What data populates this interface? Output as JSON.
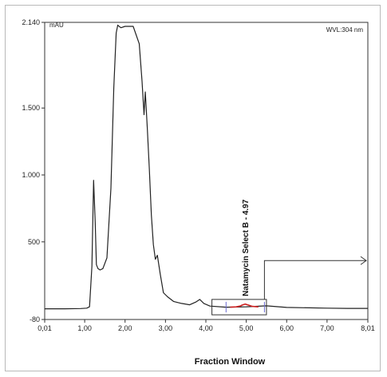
{
  "chart_data": {
    "type": "line",
    "title": "",
    "xlabel": "Fraction Window",
    "ylabel_unit": "mAU",
    "wavelength_label": "WVL:304 nm",
    "xlim": [
      0.01,
      8.01
    ],
    "ylim": [
      -80,
      2140
    ],
    "x_ticks": [
      0.01,
      1.0,
      2.0,
      3.0,
      4.0,
      5.0,
      6.0,
      7.0,
      8.01
    ],
    "x_tick_labels": [
      "0,01",
      "1,00",
      "2,00",
      "3,00",
      "4,00",
      "5,00",
      "6,00",
      "7,00",
      "8,01"
    ],
    "y_ticks": [
      2140,
      1500,
      1000,
      500,
      -80
    ],
    "y_tick_labels": [
      "2.140",
      "1.500",
      "1.000",
      "500",
      "-80"
    ],
    "annotation": "Natamycin Select B - 4.97",
    "fraction_window": [
      4.15,
      5.5
    ],
    "series": [
      {
        "color": "#222222",
        "x": [
          0.01,
          0.5,
          0.9,
          1.05,
          1.12,
          1.18,
          1.22,
          1.26,
          1.29,
          1.33,
          1.38,
          1.45,
          1.55,
          1.65,
          1.72,
          1.78,
          1.82,
          1.85,
          1.9,
          2.0,
          2.2,
          2.35,
          2.42,
          2.47,
          2.5,
          2.55,
          2.6,
          2.65,
          2.7,
          2.75,
          2.8,
          2.87,
          2.95,
          3.05,
          3.2,
          3.4,
          3.6,
          3.75,
          3.85,
          3.95,
          4.1,
          4.5,
          5.0,
          5.5,
          6.0,
          7.0,
          7.5,
          8.01
        ],
        "y": [
          0,
          0,
          2,
          5,
          15,
          320,
          960,
          650,
          330,
          300,
          290,
          300,
          380,
          900,
          1650,
          2060,
          2120,
          2110,
          2100,
          2110,
          2110,
          1980,
          1700,
          1450,
          1620,
          1350,
          1050,
          700,
          480,
          370,
          400,
          260,
          120,
          90,
          55,
          40,
          30,
          50,
          70,
          40,
          20,
          12,
          15,
          22,
          10,
          5,
          3,
          3
        ]
      },
      {
        "color": "#cc2020",
        "x": [
          4.6,
          4.75,
          4.85,
          4.9,
          4.97,
          5.05,
          5.15,
          5.3
        ],
        "y": [
          12,
          14,
          20,
          28,
          35,
          28,
          18,
          14
        ]
      }
    ]
  }
}
